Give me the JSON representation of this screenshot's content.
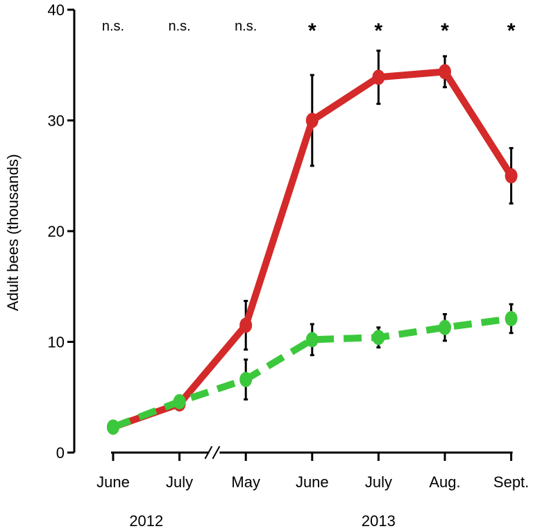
{
  "chart_data": {
    "type": "line",
    "title": "",
    "xlabel": "",
    "ylabel": "Adult bees (thousands)",
    "ylim": [
      0,
      40
    ],
    "yticks": [
      0,
      10,
      20,
      30,
      40
    ],
    "categories": [
      "June",
      "July",
      "May",
      "June",
      "July",
      "Aug.",
      "Sept."
    ],
    "year_groups": [
      {
        "label": "2012",
        "from": 0,
        "to": 1
      },
      {
        "label": "2013",
        "from": 2,
        "to": 6
      }
    ],
    "axis_break": {
      "between": [
        1,
        2
      ]
    },
    "significance": [
      "n.s.",
      "n.s.",
      "n.s.",
      "*",
      "*",
      "*",
      "*"
    ],
    "grid": false,
    "legend": "none",
    "series": [
      {
        "color": "#d42a2a",
        "line_style": "solid",
        "values": [
          2.3,
          4.4,
          11.5,
          30.0,
          33.9,
          34.4,
          25.0
        ],
        "error": [
          0.3,
          0.5,
          2.2,
          4.1,
          2.4,
          1.4,
          2.5
        ],
        "error_from": 2
      },
      {
        "color": "#3cc83c",
        "line_style": "dashed",
        "values": [
          2.3,
          4.6,
          6.6,
          10.2,
          10.4,
          11.3,
          12.1
        ],
        "error": [
          0.2,
          0.4,
          1.8,
          1.4,
          0.9,
          1.2,
          1.3
        ],
        "error_from": 2
      }
    ]
  }
}
